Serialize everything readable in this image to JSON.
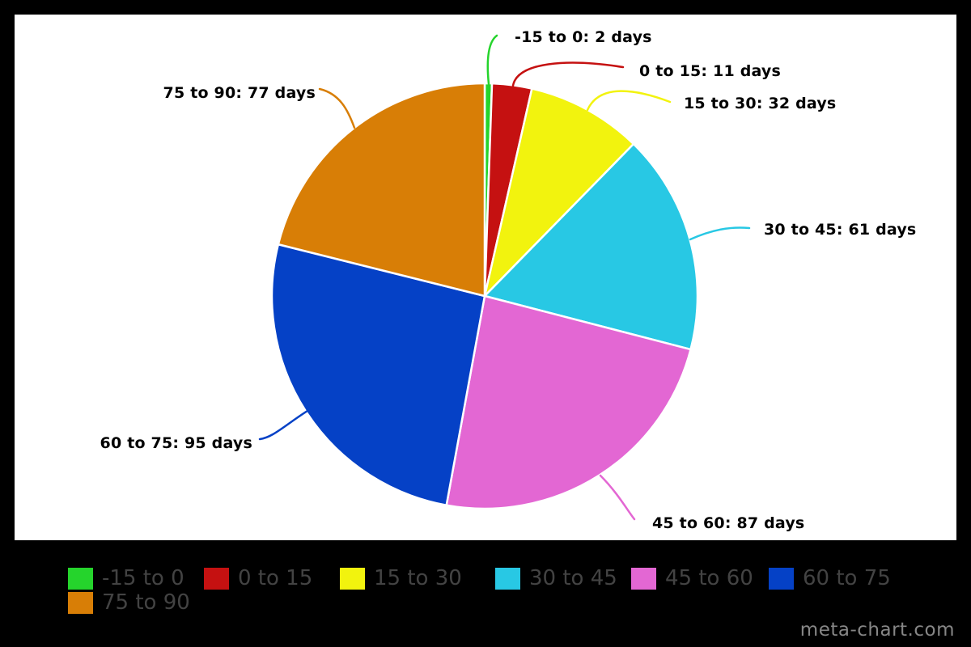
{
  "page": {
    "watermark": "meta-chart.com",
    "background": "#000000",
    "canvas_background": "#ffffff",
    "callout_text_color": "#000000",
    "legend_text_color": "#434343"
  },
  "chart_data": {
    "type": "pie",
    "title": "",
    "unit": "days",
    "total": 365,
    "start_angle_deg": 0,
    "direction": "clockwise",
    "legend_position": "bottom",
    "slices": [
      {
        "label": "-15 to 0",
        "value": 2,
        "color": "#25d42c",
        "callout": "-15 to 0: 2 days"
      },
      {
        "label": "0 to 15",
        "value": 11,
        "color": "#c51111",
        "callout": "0 to 15: 11 days"
      },
      {
        "label": "15 to 30",
        "value": 32,
        "color": "#f2f30e",
        "callout": "15 to 30: 32 days"
      },
      {
        "label": "30 to 45",
        "value": 61,
        "color": "#28c8e4",
        "callout": "30 to 45: 61 days"
      },
      {
        "label": "45 to 60",
        "value": 87,
        "color": "#e367d3",
        "callout": "45 to 60: 87 days"
      },
      {
        "label": "60 to 75",
        "value": 95,
        "color": "#0541c6",
        "callout": "60 to 75: 95 days"
      },
      {
        "label": "75 to 90",
        "value": 77,
        "color": "#d87e06",
        "callout": "75 to 90: 77 days"
      }
    ]
  }
}
